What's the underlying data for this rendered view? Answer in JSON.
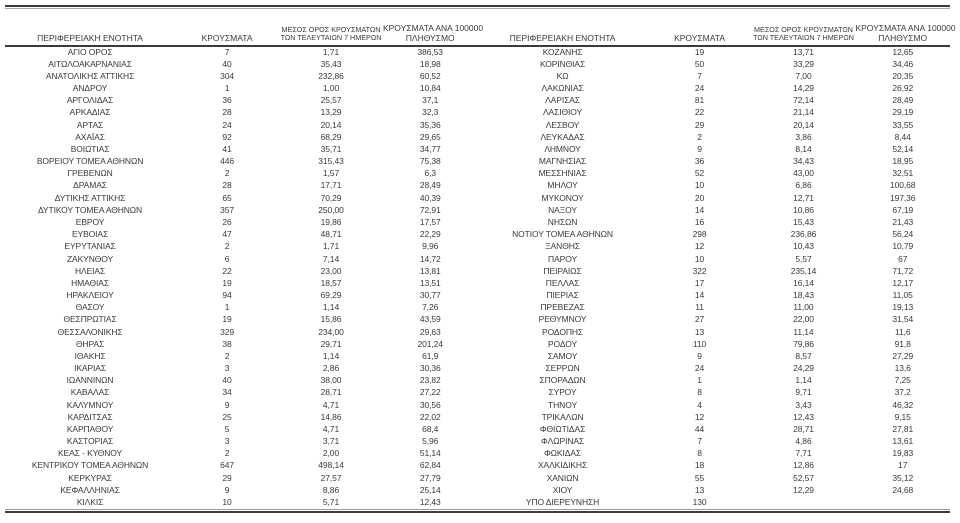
{
  "colors": {
    "background": "#ffffff",
    "text": "#3a3a3a",
    "rule_dark": "#3d3d3d",
    "rule_light": "#ababab"
  },
  "table": {
    "headers": {
      "region": "ΠΕΡΙΦΕΡΕΙΑΚΗ ΕΝΟΤΗΤΑ",
      "cases": "ΚΡΟΥΣΜΑΤΑ",
      "avg7_line1": "ΜΕΣΟΣ ΟΡΟΣ ΚΡΟΥΣΜΑΤΩΝ",
      "avg7_line2": "ΤΩΝ ΤΕΛΕΥΤΑΙΩΝ 7 ΗΜΕΡΩΝ",
      "per100k_line1": "ΚΡΟΥΣΜΑΤΑ ΑΝΑ 100000",
      "per100k_line2": "ΠΛΗΘΥΣΜΟ"
    },
    "left_rows": [
      [
        "ΑΓΙΟ ΟΡΟΣ",
        "7",
        "1,71",
        "386,53"
      ],
      [
        "ΑΙΤΩΛΟΑΚΑΡΝΑΝΙΑΣ",
        "40",
        "35,43",
        "18,98"
      ],
      [
        "ΑΝΑΤΟΛΙΚΗΣ ΑΤΤΙΚΗΣ",
        "304",
        "232,86",
        "60,52"
      ],
      [
        "ΑΝΔΡΟΥ",
        "1",
        "1,00",
        "10,84"
      ],
      [
        "ΑΡΓΟΛΙΔΑΣ",
        "36",
        "25,57",
        "37,1"
      ],
      [
        "ΑΡΚΑΔΙΑΣ",
        "28",
        "13,29",
        "32,3"
      ],
      [
        "ΑΡΤΑΣ",
        "24",
        "20,14",
        "35,36"
      ],
      [
        "ΑΧΑΪΑΣ",
        "92",
        "68,29",
        "29,65"
      ],
      [
        "ΒΟΙΩΤΙΑΣ",
        "41",
        "35,71",
        "34,77"
      ],
      [
        "ΒΟΡΕΙΟΥ ΤΟΜΕΑ ΑΘΗΝΩΝ",
        "446",
        "315,43",
        "75,38"
      ],
      [
        "ΓΡΕΒΕΝΩΝ",
        "2",
        "1,57",
        "6,3"
      ],
      [
        "ΔΡΑΜΑΣ",
        "28",
        "17,71",
        "28,49"
      ],
      [
        "ΔΥΤΙΚΗΣ ΑΤΤΙΚΗΣ",
        "65",
        "70,29",
        "40,39"
      ],
      [
        "ΔΥΤΙΚΟΥ ΤΟΜΕΑ ΑΘΗΝΩΝ",
        "357",
        "250,00",
        "72,91"
      ],
      [
        "ΕΒΡΟΥ",
        "26",
        "19,86",
        "17,57"
      ],
      [
        "ΕΥΒΟΙΑΣ",
        "47",
        "48,71",
        "22,29"
      ],
      [
        "ΕΥΡΥΤΑΝΙΑΣ",
        "2",
        "1,71",
        "9,96"
      ],
      [
        "ΖΑΚΥΝΘΟΥ",
        "6",
        "7,14",
        "14,72"
      ],
      [
        "ΗΛΕΙΑΣ",
        "22",
        "23,00",
        "13,81"
      ],
      [
        "ΗΜΑΘΙΑΣ",
        "19",
        "18,57",
        "13,51"
      ],
      [
        "ΗΡΑΚΛΕΙΟΥ",
        "94",
        "69,29",
        "30,77"
      ],
      [
        "ΘΑΣΟΥ",
        "1",
        "1,14",
        "7,26"
      ],
      [
        "ΘΕΣΠΡΩΤΙΑΣ",
        "19",
        "15,86",
        "43,59"
      ],
      [
        "ΘΕΣΣΑΛΟΝΙΚΗΣ",
        "329",
        "234,00",
        "29,63"
      ],
      [
        "ΘΗΡΑΣ",
        "38",
        "29,71",
        "201,24"
      ],
      [
        "ΙΘΑΚΗΣ",
        "2",
        "1,14",
        "61,9"
      ],
      [
        "ΙΚΑΡΙΑΣ",
        "3",
        "2,86",
        "30,36"
      ],
      [
        "ΙΩΑΝΝΙΝΩΝ",
        "40",
        "38,00",
        "23,82"
      ],
      [
        "ΚΑΒΑΛΑΣ",
        "34",
        "28,71",
        "27,22"
      ],
      [
        "ΚΑΛΥΜΝΟΥ",
        "9",
        "4,71",
        "30,56"
      ],
      [
        "ΚΑΡΔΙΤΣΑΣ",
        "25",
        "14,86",
        "22,02"
      ],
      [
        "ΚΑΡΠΑΘΟΥ",
        "5",
        "4,71",
        "68,4"
      ],
      [
        "ΚΑΣΤΟΡΙΑΣ",
        "3",
        "3,71",
        "5,96"
      ],
      [
        "ΚΕΑΣ - ΚΥΘΝΟΥ",
        "2",
        "2,00",
        "51,14"
      ],
      [
        "ΚΕΝΤΡΙΚΟΥ ΤΟΜΕΑ ΑΘΗΝΩΝ",
        "647",
        "498,14",
        "62,84"
      ],
      [
        "ΚΕΡΚΥΡΑΣ",
        "29",
        "27,57",
        "27,79"
      ],
      [
        "ΚΕΦΑΛΛΗΝΙΑΣ",
        "9",
        "8,86",
        "25,14"
      ],
      [
        "ΚΙΛΚΙΣ",
        "10",
        "5,71",
        "12,43"
      ]
    ],
    "right_rows": [
      [
        "ΚΟΖΑΝΗΣ",
        "19",
        "13,71",
        "12,65"
      ],
      [
        "ΚΟΡΙΝΘΙΑΣ",
        "50",
        "33,29",
        "34,46"
      ],
      [
        "ΚΩ",
        "7",
        "7,00",
        "20,35"
      ],
      [
        "ΛΑΚΩΝΙΑΣ",
        "24",
        "14,29",
        "26,92"
      ],
      [
        "ΛΑΡΙΣΑΣ",
        "81",
        "72,14",
        "28,49"
      ],
      [
        "ΛΑΣΙΘΙΟΥ",
        "22",
        "21,14",
        "29,19"
      ],
      [
        "ΛΕΣΒΟΥ",
        "29",
        "20,14",
        "33,55"
      ],
      [
        "ΛΕΥΚΑΔΑΣ",
        "2",
        "3,86",
        "8,44"
      ],
      [
        "ΛΗΜΝΟΥ",
        "9",
        "8,14",
        "52,14"
      ],
      [
        "ΜΑΓΝΗΣΙΑΣ",
        "36",
        "34,43",
        "18,95"
      ],
      [
        "ΜΕΣΣΗΝΙΑΣ",
        "52",
        "43,00",
        "32,51"
      ],
      [
        "ΜΗΛΟΥ",
        "10",
        "6,86",
        "100,68"
      ],
      [
        "ΜΥΚΟΝΟΥ",
        "20",
        "12,71",
        "197,36"
      ],
      [
        "ΝΑΞΟΥ",
        "14",
        "10,86",
        "67,19"
      ],
      [
        "ΝΗΣΩΝ",
        "16",
        "15,43",
        "21,43"
      ],
      [
        "ΝΟΤΙΟΥ ΤΟΜΕΑ ΑΘΗΝΩΝ",
        "298",
        "236,86",
        "56,24"
      ],
      [
        "ΞΑΝΘΗΣ",
        "12",
        "10,43",
        "10,79"
      ],
      [
        "ΠΑΡΟΥ",
        "10",
        "5,57",
        "67"
      ],
      [
        "ΠΕΙΡΑΙΩΣ",
        "322",
        "235,14",
        "71,72"
      ],
      [
        "ΠΕΛΛΑΣ",
        "17",
        "16,14",
        "12,17"
      ],
      [
        "ΠΙΕΡΙΑΣ",
        "14",
        "18,43",
        "11,05"
      ],
      [
        "ΠΡΕΒΕΖΑΣ",
        "11",
        "11,00",
        "19,13"
      ],
      [
        "ΡΕΘΥΜΝΟΥ",
        "27",
        "22,00",
        "31,54"
      ],
      [
        "ΡΟΔΟΠΗΣ",
        "13",
        "11,14",
        "11,6"
      ],
      [
        "ΡΟΔΟΥ",
        "110",
        "79,86",
        "91,8"
      ],
      [
        "ΣΑΜΟΥ",
        "9",
        "8,57",
        "27,29"
      ],
      [
        "ΣΕΡΡΩΝ",
        "24",
        "24,29",
        "13,6"
      ],
      [
        "ΣΠΟΡΑΔΩΝ",
        "1",
        "1,14",
        "7,25"
      ],
      [
        "ΣΥΡΟΥ",
        "8",
        "9,71",
        "37,2"
      ],
      [
        "ΤΗΝΟΥ",
        "4",
        "3,43",
        "46,32"
      ],
      [
        "ΤΡΙΚΑΛΩΝ",
        "12",
        "12,43",
        "9,15"
      ],
      [
        "ΦΘΙΩΤΙΔΑΣ",
        "44",
        "28,71",
        "27,81"
      ],
      [
        "ΦΛΩΡΙΝΑΣ",
        "7",
        "4,86",
        "13,61"
      ],
      [
        "ΦΩΚΙΔΑΣ",
        "8",
        "7,71",
        "19,83"
      ],
      [
        "ΧΑΛΚΙΔΙΚΗΣ",
        "18",
        "12,86",
        "17"
      ],
      [
        "ΧΑΝΙΩΝ",
        "55",
        "52,57",
        "35,12"
      ],
      [
        "ΧΙΟΥ",
        "13",
        "12,29",
        "24,68"
      ],
      [
        "ΥΠΟ ΔΙΕΡΕΥΝΗΣΗ",
        "130",
        "",
        ""
      ]
    ]
  }
}
